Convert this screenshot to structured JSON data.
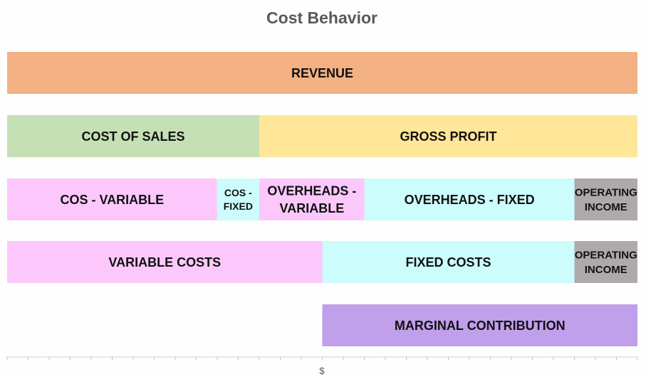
{
  "chart_data": {
    "type": "bar",
    "orientation": "horizontal-stacked",
    "title": "Cost Behavior",
    "xlabel": "$",
    "xlim": [
      0,
      100
    ],
    "grid": false,
    "legend": "none",
    "rows": [
      {
        "segments": [
          {
            "label": "REVENUE",
            "start": 0,
            "value": 100,
            "color": "#f4b183"
          }
        ]
      },
      {
        "segments": [
          {
            "label": "COST OF SALES",
            "start": 0,
            "value": 40,
            "color": "#c5e0b4"
          },
          {
            "label": "GROSS PROFIT",
            "start": 40,
            "value": 60,
            "color": "#ffe699"
          }
        ]
      },
      {
        "segments": [
          {
            "label": "COS - VARIABLE",
            "start": 0,
            "value": 33.3,
            "color": "#fcc8fc"
          },
          {
            "label": "COS - FIXED",
            "start": 33.3,
            "value": 6.7,
            "color": "#ccfcfc"
          },
          {
            "label": "OVERHEADS - VARIABLE",
            "start": 40,
            "value": 16.7,
            "color": "#fcc8fc"
          },
          {
            "label": "OVERHEADS - FIXED",
            "start": 56.7,
            "value": 33.3,
            "color": "#ccfcfc"
          },
          {
            "label": "OPERATING INCOME",
            "start": 90,
            "value": 10,
            "color": "#aeaaaa"
          }
        ]
      },
      {
        "segments": [
          {
            "label": "VARIABLE COSTS",
            "start": 0,
            "value": 50,
            "color": "#fcc8fc"
          },
          {
            "label": "FIXED COSTS",
            "start": 50,
            "value": 40,
            "color": "#ccfcfc"
          },
          {
            "label": "OPERATING INCOME",
            "start": 90,
            "value": 10,
            "color": "#aeaaaa"
          }
        ]
      },
      {
        "segments": [
          {
            "label": "MARGINAL CONTRIBUTION",
            "start": 50,
            "value": 50,
            "color": "#c09feb"
          }
        ]
      }
    ],
    "tick_count": 30
  }
}
